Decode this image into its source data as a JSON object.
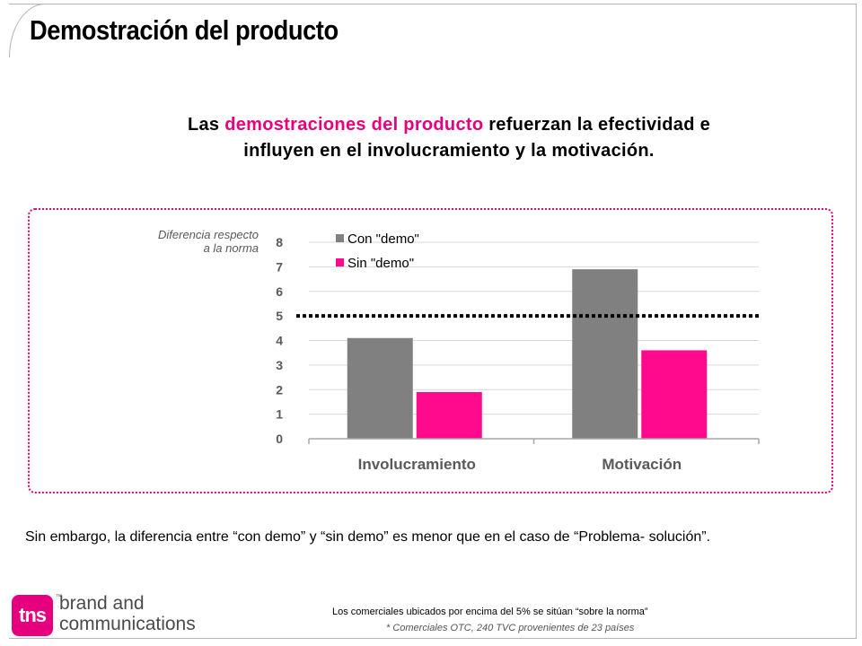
{
  "title": "Demostración del producto",
  "headline": {
    "part1": "Las ",
    "highlight": "demostraciones del producto",
    "part2": " refuerzan la efectividad e",
    "line2": "influyen en el involucramiento y la motivación."
  },
  "colors": {
    "accent": "#e6007e",
    "series1": "#808080",
    "series2": "#ff0a8c"
  },
  "chart_data": {
    "type": "bar",
    "ylabel_line1": "Diferencia respecto",
    "ylabel_line2": "a la norma",
    "categories": [
      "Involucramiento",
      "Motivación"
    ],
    "series": [
      {
        "name": "Con \"demo\"",
        "values": [
          4.1,
          6.9
        ],
        "color": "#808080"
      },
      {
        "name": "Sin \"demo\"",
        "values": [
          1.9,
          3.6
        ],
        "color": "#ff0a8c"
      }
    ],
    "ylim": [
      0,
      8
    ],
    "yticks": [
      "0",
      "1",
      "2",
      "3",
      "4",
      "5",
      "6",
      "7",
      "8"
    ],
    "norm_line": 5,
    "grid": true,
    "legend": "top-left"
  },
  "note": "Sin embargo, la diferencia entre “con demo” y “sin demo” es menor que en el caso de “Problema- solución”.",
  "logo": {
    "mark": "tns",
    "tm": "™",
    "line1": "brand and",
    "line2": "communications"
  },
  "footnote1": "Los comerciales ubicados por encima del 5% se sitúan “sobre la norma”",
  "footnote2": "* Comerciales OTC, 240 TVC provenientes de 23 países"
}
